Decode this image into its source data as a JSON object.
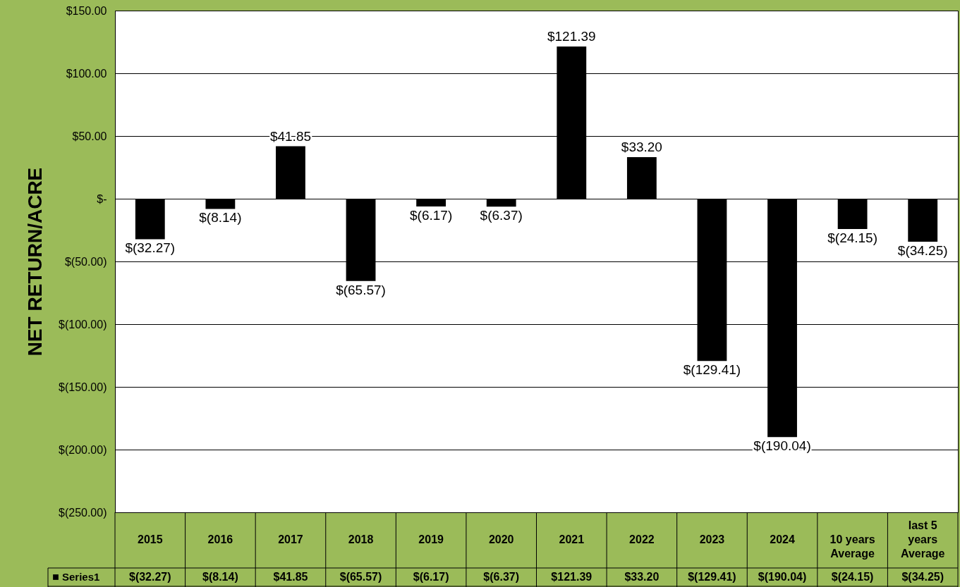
{
  "chart_data": {
    "type": "bar",
    "ylabel": "NET RETURN/ACRE",
    "categories": [
      "2015",
      "2016",
      "2017",
      "2018",
      "2019",
      "2020",
      "2021",
      "2022",
      "2023",
      "2024",
      "10 years Average",
      "last 5 years Average"
    ],
    "series": [
      {
        "name": "Series1",
        "color": "#000000",
        "values": [
          -32.27,
          -8.14,
          41.85,
          -65.57,
          -6.17,
          -6.37,
          121.39,
          33.2,
          -129.41,
          -190.04,
          -24.15,
          -34.25
        ]
      }
    ],
    "value_labels": [
      "$(32.27)",
      "$(8.14)",
      "$41.85",
      "$(65.57)",
      "$(6.17)",
      "$(6.37)",
      "$121.39",
      "$33.20",
      "$(129.41)",
      "$(190.04)",
      "$(24.15)",
      "$(34.25)"
    ],
    "ylim": [
      -250,
      150
    ],
    "yticks": [
      {
        "value": 150,
        "label": "$150.00"
      },
      {
        "value": 100,
        "label": "$100.00"
      },
      {
        "value": 50,
        "label": "$50.00"
      },
      {
        "value": 0,
        "label": "$-"
      },
      {
        "value": -50,
        "label": "$(50.00)"
      },
      {
        "value": -100,
        "label": "$(100.00)"
      },
      {
        "value": -150,
        "label": "$(150.00)"
      },
      {
        "value": -200,
        "label": "$(200.00)"
      },
      {
        "value": -250,
        "label": "$(250.00)"
      }
    ],
    "grid": "y",
    "legend": "bottom"
  }
}
